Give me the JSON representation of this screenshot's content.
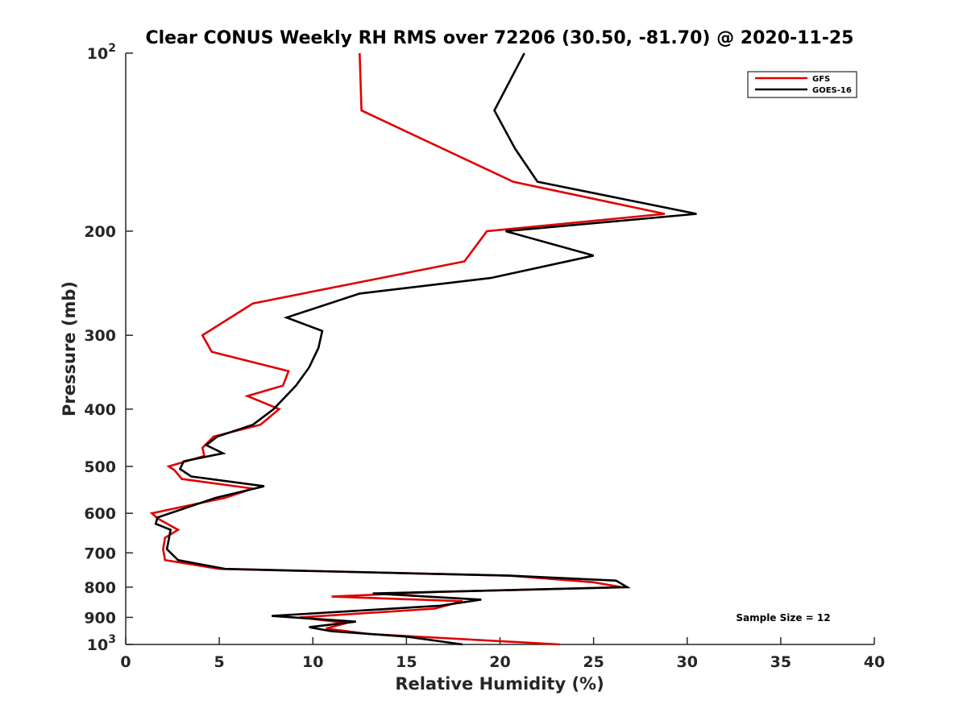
{
  "chart_data": {
    "type": "line",
    "title": "Clear CONUS Weekly RH RMS over 72206 (30.50, -81.70) @ 2020-11-25",
    "xlabel": "Relative Humidity (%)",
    "ylabel": "Pressure (mb)",
    "xlim": [
      0,
      40
    ],
    "ylim": [
      100,
      1000
    ],
    "y_scale": "log",
    "y_reversed": true,
    "grid": false,
    "legend_position": "top-right",
    "x_ticks": [
      "0",
      "5",
      "10",
      "15",
      "20",
      "25",
      "30",
      "35",
      "40"
    ],
    "y_ticks": [
      {
        "value": 100,
        "base": "10",
        "exp": "2"
      },
      {
        "value": 200,
        "base": "200",
        "exp": ""
      },
      {
        "value": 300,
        "base": "300",
        "exp": ""
      },
      {
        "value": 400,
        "base": "400",
        "exp": ""
      },
      {
        "value": 500,
        "base": "500",
        "exp": ""
      },
      {
        "value": 600,
        "base": "600",
        "exp": ""
      },
      {
        "value": 700,
        "base": "700",
        "exp": ""
      },
      {
        "value": 800,
        "base": "800",
        "exp": ""
      },
      {
        "value": 900,
        "base": "900",
        "exp": ""
      },
      {
        "value": 1000,
        "base": "10",
        "exp": "3"
      }
    ],
    "annotation": "Sample Size = 12",
    "series": [
      {
        "name": "GFS",
        "color": "#e00000",
        "points": [
          [
            12.5,
            100
          ],
          [
            12.6,
            125
          ],
          [
            20.7,
            165
          ],
          [
            28.8,
            187
          ],
          [
            19.3,
            200
          ],
          [
            18.1,
            225
          ],
          [
            6.8,
            265
          ],
          [
            4.1,
            300
          ],
          [
            4.6,
            320
          ],
          [
            8.7,
            345
          ],
          [
            8.4,
            365
          ],
          [
            6.5,
            380
          ],
          [
            8.2,
            400
          ],
          [
            7.2,
            425
          ],
          [
            4.7,
            445
          ],
          [
            4.1,
            465
          ],
          [
            4.2,
            480
          ],
          [
            2.3,
            500
          ],
          [
            2.6,
            507
          ],
          [
            3.0,
            525
          ],
          [
            6.8,
            545
          ],
          [
            5.3,
            565
          ],
          [
            1.4,
            600
          ],
          [
            1.7,
            612
          ],
          [
            2.8,
            640
          ],
          [
            2.1,
            660
          ],
          [
            2.0,
            690
          ],
          [
            2.1,
            720
          ],
          [
            5.0,
            745
          ],
          [
            20.5,
            765
          ],
          [
            25.0,
            785
          ],
          [
            26.5,
            800
          ],
          [
            16.6,
            815
          ],
          [
            11.0,
            830
          ],
          [
            18.0,
            845
          ],
          [
            16.5,
            870
          ],
          [
            9.3,
            900
          ],
          [
            11.8,
            920
          ],
          [
            10.7,
            940
          ],
          [
            13.0,
            960
          ],
          [
            23.2,
            1000
          ]
        ]
      },
      {
        "name": "GOES-16",
        "color": "#000000",
        "points": [
          [
            21.3,
            100
          ],
          [
            19.7,
            125
          ],
          [
            20.8,
            145
          ],
          [
            22.0,
            165
          ],
          [
            30.5,
            187
          ],
          [
            20.3,
            200
          ],
          [
            25.0,
            220
          ],
          [
            19.5,
            240
          ],
          [
            12.5,
            255
          ],
          [
            8.6,
            280
          ],
          [
            10.5,
            295
          ],
          [
            10.3,
            315
          ],
          [
            9.8,
            340
          ],
          [
            9.1,
            365
          ],
          [
            8.4,
            385
          ],
          [
            7.9,
            400
          ],
          [
            6.8,
            425
          ],
          [
            4.9,
            445
          ],
          [
            4.3,
            460
          ],
          [
            5.2,
            475
          ],
          [
            3.1,
            490
          ],
          [
            2.9,
            505
          ],
          [
            3.5,
            520
          ],
          [
            7.4,
            540
          ],
          [
            4.8,
            565
          ],
          [
            1.7,
            610
          ],
          [
            1.6,
            625
          ],
          [
            2.4,
            640
          ],
          [
            2.3,
            665
          ],
          [
            2.2,
            690
          ],
          [
            2.8,
            720
          ],
          [
            5.3,
            745
          ],
          [
            20.5,
            765
          ],
          [
            26.2,
            780
          ],
          [
            26.8,
            800
          ],
          [
            13.2,
            820
          ],
          [
            19.0,
            840
          ],
          [
            16.8,
            860
          ],
          [
            7.8,
            895
          ],
          [
            12.3,
            915
          ],
          [
            9.8,
            935
          ],
          [
            11.0,
            950
          ],
          [
            15.0,
            970
          ],
          [
            18.0,
            1000
          ]
        ]
      }
    ]
  }
}
